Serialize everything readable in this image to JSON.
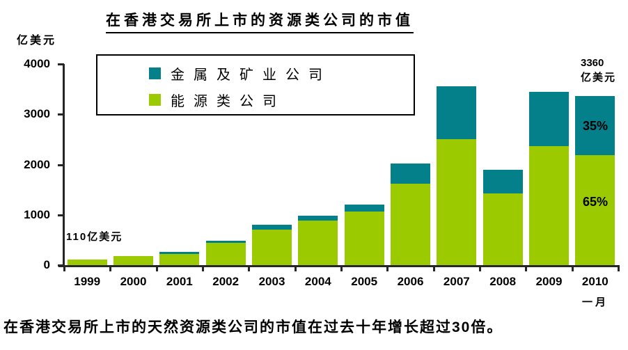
{
  "footnote": "在香港交易所上市的天然资源类公司的市值在过去十年增长超过30倍。",
  "chart_data": {
    "type": "bar",
    "stacked": true,
    "title": "在香港交易所上市的资源类公司的市值",
    "ylabel": "亿美元",
    "ylim": [
      0,
      4000
    ],
    "yticks": [
      0,
      1000,
      2000,
      3000,
      4000
    ],
    "grid": false,
    "categories": [
      "1999",
      "2000",
      "2001",
      "2002",
      "2003",
      "2004",
      "2005",
      "2006",
      "2007",
      "2008",
      "2009",
      "2010"
    ],
    "series": [
      {
        "name": "能源类公司",
        "color": "#9BCA00",
        "values": [
          110,
          185,
          220,
          440,
          705,
          890,
          1060,
          1620,
          2500,
          1430,
          2360,
          2184
        ]
      },
      {
        "name": "金属及矿业公司",
        "color": "#04808A",
        "values": [
          0,
          0,
          40,
          50,
          95,
          95,
          140,
          400,
          1060,
          470,
          1080,
          1176
        ]
      }
    ],
    "totals": [
      110,
      185,
      260,
      490,
      800,
      985,
      1200,
      2020,
      3560,
      1900,
      3440,
      3360
    ],
    "legend": {
      "position": "top-left-inside",
      "items": [
        {
          "label": "金属及矿业公司",
          "color": "#04808A"
        },
        {
          "label": "能源类公司",
          "color": "#9BCA00"
        }
      ]
    },
    "annotations": {
      "first_bar_label": "110亿美元",
      "last_bar_value": "3360",
      "last_bar_unit": "亿美元",
      "metals_share_2010": "35%",
      "energy_share_2010": "65%",
      "last_category_sublabel": "一月"
    }
  }
}
